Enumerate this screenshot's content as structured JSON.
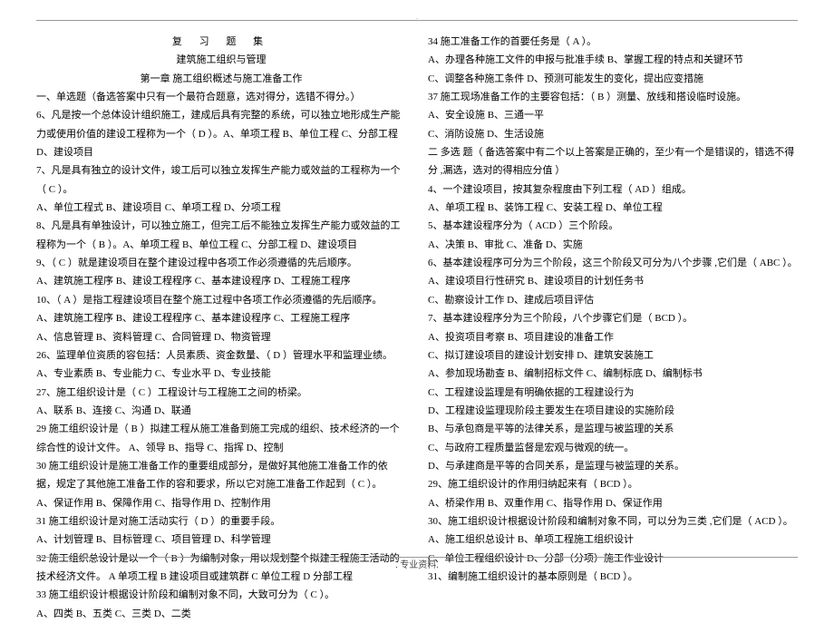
{
  "dot": ".",
  "header": {
    "title": "复 习 题 集",
    "subtitle": "建筑施工组织与管理",
    "chapter": "第一章  施工组织概述与施工准备工作"
  },
  "left": {
    "l1": "一、单选题（备选答案中只有一个最符合题意，选对得分，选错不得分。）",
    "l2": "6、凡是按一个总体设计组织施工，建成后具有完整的系统，可以独立地形成生产能力或使用价值的建设工程称为一个（ D ）。A、单项工程   B、单位工程   C、分部工程   D、建设项目",
    "l3": "7、凡是具有独立的设计文件，竣工后可以独立发挥生产能力或效益的工程称为一个（ C ）。",
    "l4": "A、单位工程式  B、建设项目   C、单项工程   D、分项工程",
    "l5": "8、凡是具有单独设计，可以独立施工，但完工后不能独立发挥生产能力或效益的工程称为一个（ B ）。A、单项工程   B、单位工程   C、分部工程   D、建设项目",
    "l6": "9、（ C ）就是建设项目在整个建设过程中各项工作必须遵循的先后顺序。",
    "l7": "          A、建筑施工程序   B、建设工程程序   C、基本建设程序   D、工程施工程序",
    "l8": "10、（ A ）是指工程建设项目在整个施工过程中各项工作必须遵循的先后顺序。",
    "l9": "          A、建筑施工程序   B、建设工程程序   C、基本建设程序   C、工程施工程序",
    "l10": "          A、信息管理   B、资料管理   C、合同管理   D、物资管理",
    "l11": "26、监理单位资质的容包括：人员素质、资金数量、（ D ）管理水平和监理业绩。",
    "l12": "          A、专业素质     B、专业能力     C、专业水平     D、专业技能",
    "l13": "27、施工组织设计是（ C ）工程设计与工程施工之间的桥梁。",
    "l14": "        A、联系       B、连接       C、沟通       D、联通",
    "l15": "29 施工组织设计是（ B ）拟建工程从施工准备到施工完成的组织、技术经济的一个综合性的设计文件。     A、领导     B、指导   C、指挥     D、控制",
    "l16": "30  施工组织设计是施工准备工作的重要组成部分，是做好其他施工准备工作的依据，规定了其他施工准备工作的容和要求，所以它对施工准备工作起到（ C ）。",
    "l17": "        A、保证作用     B、保障作用     C、指导作用     D、控制作用",
    "l18": "31  施工组织设计是对施工活动实行（ D ）的重要手段。",
    "l19": "        A、计划管理   B、目标管理     C、项目管理     D、科学管理",
    "l20": "32  施工组织总设计是以一个（ B ）为编制对象，用以规划整个拟建工程施工活动的技术经济文件。  A 单项工程  B 建设项目或建筑群   C 单位工程   D 分部工程",
    "l21": "33 施工组织设计根据设计阶段和编制对象不同，大致可分为（ C ）。",
    "l22": "      A、四类       B、五类   C、三类     D、二类"
  },
  "right": {
    "r1": "34  施工准备工作的首要任务是（ A ）。",
    "r2": "        A、办理各种施工文件的申报与批准手续   B、掌握工程的特点和关键环节",
    "r3": "        C、调整各种施工条件               D、预测可能发生的变化，提出应变措施",
    "r4": "37  施工现场准备工作的主要容包括：（ B ）测量、放线和搭设临时设施。",
    "r5": "        A、安全设施       B、三通一平",
    "r6": "        C、消防设施       D、生活设施",
    "r7": "二  多选  题（ 备选答案中有二个以上答案是正确的，至少有一个是错误的，错选不得分 ,漏选，选对的得相应分值 ）",
    "r8": "4、一个建设项目，按其复杂程度由下列工程（ AD ）组成。",
    "r9": "      A、单项工程     B、装饰工程     C、安装工程     D、单位工程",
    "r10": "5、基本建设程序分为（ ACD ）三个阶段。",
    "r11": "      A、决策       B、审批       C、准备       D、实施",
    "r12": "6、基本建设程序可分为三个阶段，这三个阶段又可分为八个步骤 ,它们是（ ABC ）。",
    "r13": "      A、建设项目行性研究      B、建设项目的计划任务书",
    "r14": "      C、勘察设计工作          D、建成后项目评估",
    "r15": "7、基本建设程序分为三个阶段，八个步骤它们是（ BCD ）。",
    "r16": "      A、投资项目考察           B、项目建设的准备工作",
    "r17": "      C、拟订建设项目的建设计划安排   D、建筑安装施工",
    "r18": "      A、参加现场勘查     B、编制招标文件     C、编制标底     D、编制标书",
    "r19": "      C、工程建设监理是有明确依据的工程建设行为",
    "r20": "      D、工程建设监理现阶段主要发生在项目建设的实施阶段",
    "r21": "      B、与承包商是平等的法律关系，是监理与被监理的关系",
    "r22": "      C、与政府工程质量监督是宏观与微观的统一。",
    "r23": "      D、与承建商是平等的合同关系，是监理与被监理的关系。",
    "r24": "29、施工组织设计的作用归纳起来有（ BCD ）。",
    "r25": "      A、桥梁作用     B、双重作用     C、指导作用   D、保证作用",
    "r26": "30、施工组织设计根据设计阶段和编制对象不同，可以分为三类  ,它们是（ ACD ）。",
    "r27": "      A、施工组织总设计       B、单项工程施工组织设计",
    "r28": "      C、单位工程组织设计     D、分部（分项）施工作业设计",
    "r29": "31、编制施工组织设计的基本原则是（ BCD ）。"
  },
  "footer": ". 专业资料."
}
